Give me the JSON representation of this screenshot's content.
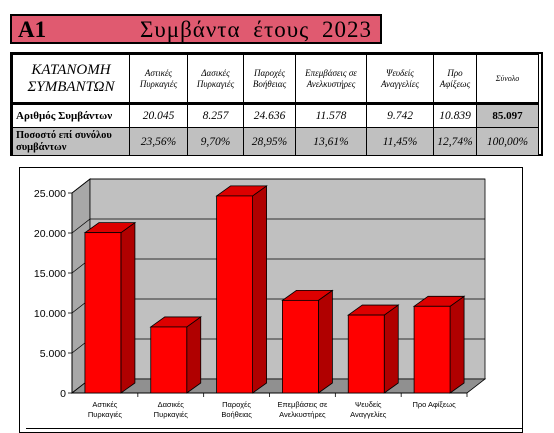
{
  "title": {
    "code": "A1",
    "text": "Συμβάντα έτους 2023"
  },
  "table": {
    "corner_label": "ΚΑΤΑΝΟΜΗ ΣΥΜΒΑΝΤΩΝ",
    "columns": [
      "Αστικές Πυρκαγιές",
      "Δασικές Πυρκαγιές",
      "Παροχές Βοήθειας",
      "Επεμβάσεις σε Ανελκυστήρες",
      "Ψευδείς Αναγγελίες",
      "Προ Αφίξεως",
      "Σύνολο"
    ],
    "rows": [
      {
        "label": "Αριθμός Συμβάντων",
        "values": [
          "20.045",
          "8.257",
          "24.636",
          "11.578",
          "9.742",
          "10.839",
          "85.097"
        ]
      },
      {
        "label": "Ποσοστό επί συνόλου συμβάντων",
        "values": [
          "23,56%",
          "9,70%",
          "28,95%",
          "13,61%",
          "11,45%",
          "12,74%",
          "100,00%"
        ]
      }
    ]
  },
  "chart_data": {
    "type": "bar",
    "categories": [
      [
        "Αστικές",
        "Πυρκαγιές"
      ],
      [
        "Δασικές",
        "Πυρκαγιές"
      ],
      [
        "Παροχές",
        "Βοήθειας"
      ],
      [
        "Επεμβάσεις σε",
        "Ανελκυστήρες"
      ],
      [
        "Ψευδείς",
        "Αναγγελίες"
      ],
      [
        "Προ Αφίξεως"
      ]
    ],
    "values": [
      20045,
      8257,
      24636,
      11578,
      9742,
      10839
    ],
    "y_ticks": [
      "0",
      "5.000",
      "10.000",
      "15.000",
      "20.000",
      "25.000"
    ],
    "ylim": [
      0,
      25000
    ],
    "bar_color": "#ff0000",
    "bar_side_color": "#b00000",
    "bar_top_color": "#dd0000",
    "wall_color": "#c0c0c0",
    "grid": true,
    "legend": "none"
  }
}
